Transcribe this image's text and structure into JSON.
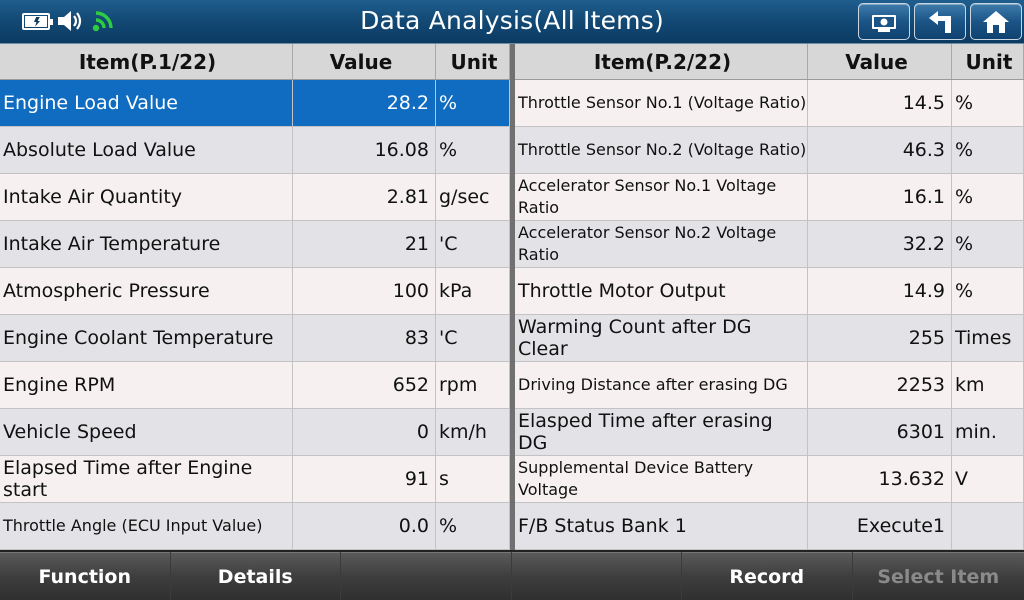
{
  "header": {
    "title": "Data Analysis(All Items)",
    "icons": [
      "battery-charging-icon",
      "speaker-icon",
      "wifi-icon"
    ],
    "buttons": [
      "screenshot-icon",
      "back-arrow-icon",
      "home-icon"
    ]
  },
  "left_table": {
    "headers": {
      "item": "Item(P.1/22)",
      "value": "Value",
      "unit": "Unit"
    },
    "rows": [
      {
        "item": "Engine Load Value",
        "value": "28.2",
        "unit": "%"
      },
      {
        "item": "Absolute Load Value",
        "value": "16.08",
        "unit": "%"
      },
      {
        "item": "Intake Air Quantity",
        "value": "2.81",
        "unit": "g/sec"
      },
      {
        "item": "Intake Air Temperature",
        "value": "21",
        "unit": "'C"
      },
      {
        "item": "Atmospheric Pressure",
        "value": "100",
        "unit": "kPa"
      },
      {
        "item": "Engine Coolant Temperature",
        "value": "83",
        "unit": "'C"
      },
      {
        "item": "Engine RPM",
        "value": "652",
        "unit": "rpm"
      },
      {
        "item": "Vehicle Speed",
        "value": "0",
        "unit": "km/h"
      },
      {
        "item": "Elapsed Time after Engine start",
        "value": "91",
        "unit": "s"
      },
      {
        "item": "Throttle Angle (ECU Input Value)",
        "value": "0.0",
        "unit": "%"
      }
    ]
  },
  "right_table": {
    "headers": {
      "item": "Item(P.2/22)",
      "value": "Value",
      "unit": "Unit"
    },
    "rows": [
      {
        "item": "Throttle Sensor No.1 (Voltage Ratio)",
        "value": "14.5",
        "unit": "%"
      },
      {
        "item": "Throttle Sensor No.2 (Voltage Ratio)",
        "value": "46.3",
        "unit": "%"
      },
      {
        "item": "Accelerator Sensor No.1 Voltage Ratio",
        "value": "16.1",
        "unit": "%"
      },
      {
        "item": "Accelerator Sensor No.2 Voltage Ratio",
        "value": "32.2",
        "unit": "%"
      },
      {
        "item": "Throttle Motor Output",
        "value": "14.9",
        "unit": "%"
      },
      {
        "item": "Warming Count after DG Clear",
        "value": "255",
        "unit": "Times"
      },
      {
        "item": "Driving Distance after erasing DG",
        "value": "2253",
        "unit": "km"
      },
      {
        "item": "Elasped Time after erasing DG",
        "value": "6301",
        "unit": "min."
      },
      {
        "item": "Supplemental Device Battery Voltage",
        "value": "13.632",
        "unit": "V"
      },
      {
        "item": "F/B Status Bank 1",
        "value": "Execute1",
        "unit": ""
      }
    ]
  },
  "footer": {
    "function": "Function",
    "details": "Details",
    "blank1": "",
    "blank2": "",
    "record": "Record",
    "select_item": "Select Item"
  },
  "colors": {
    "header_bg": "#134a76",
    "selected_row": "#0f6cc0",
    "wifi": "#2ecc40"
  }
}
